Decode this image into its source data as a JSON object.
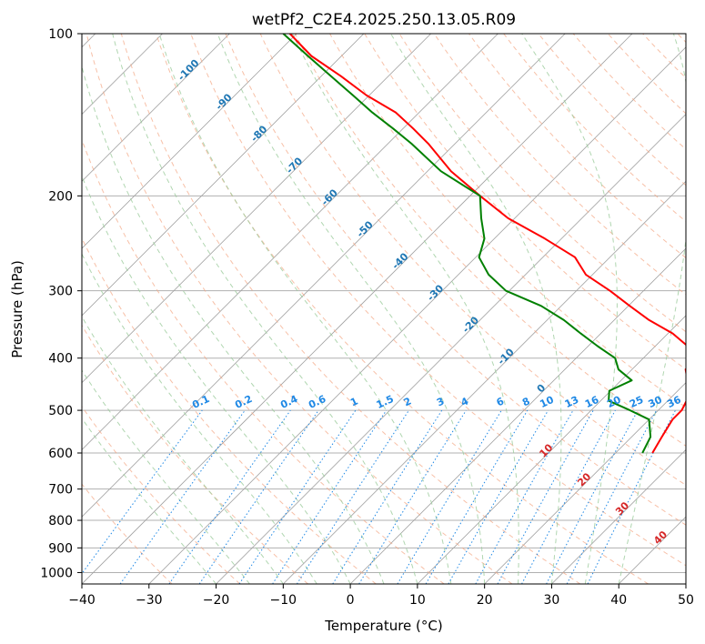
{
  "chart_data": {
    "type": "line",
    "subtype": "skew-t log-p diagram",
    "title": "wetPf2_C2E4.2025.250.13.05.R09",
    "xlabel": "Temperature (°C)",
    "ylabel": "Pressure (hPa)",
    "xlim": [
      -40,
      50
    ],
    "ylim": [
      1050,
      100
    ],
    "yscale": "log",
    "x_ticks": [
      "−40",
      "−30",
      "−20",
      "−10",
      "0",
      "10",
      "20",
      "30",
      "40",
      "50"
    ],
    "y_ticks": [
      "100",
      "200",
      "300",
      "400",
      "500",
      "600",
      "700",
      "800",
      "900",
      "1000"
    ],
    "y_tick_values": [
      100,
      200,
      300,
      400,
      500,
      600,
      700,
      800,
      900,
      1000
    ],
    "grid": true,
    "colors": {
      "temperature": "#ff0000",
      "dewpoint": "#008000",
      "isotherm": "#a0a0a0",
      "dry_adiabat": "#f4a582",
      "moist_adiabat": "#9ccc9c",
      "mixing_ratio": "#1e88e5",
      "isotherm_label": "#1f77b4",
      "dry_adiabat_label": "#d62728"
    },
    "series": [
      {
        "key": "temperature",
        "pressure": [
          600,
          560,
          520,
          500,
          480,
          460,
          440,
          420,
          400,
          380,
          360,
          340,
          320,
          300,
          280,
          260,
          240,
          220,
          200,
          180,
          160,
          150,
          140,
          130,
          120,
          110,
          100
        ],
        "values": [
          25.5,
          24.5,
          23.5,
          23.5,
          22.8,
          21.6,
          19.9,
          18.0,
          17.8,
          14.8,
          10.7,
          5.2,
          0.2,
          -5.0,
          -11.0,
          -15.2,
          -22.5,
          -31.0,
          -38.5,
          -46.5,
          -54.0,
          -58.5,
          -63.5,
          -70.5,
          -77.0,
          -84.5,
          -91.0
        ]
      },
      {
        "key": "dewpoint",
        "pressure": [
          600,
          560,
          520,
          500,
          480,
          460,
          440,
          420,
          400,
          380,
          360,
          340,
          320,
          300,
          280,
          260,
          240,
          220,
          200,
          180,
          160,
          150,
          140,
          130,
          120,
          110,
          100
        ],
        "values": [
          24.0,
          22.8,
          20.0,
          15.8,
          11.2,
          9.8,
          11.6,
          8.0,
          5.8,
          1.4,
          -3.0,
          -7.5,
          -13.0,
          -20.5,
          -25.5,
          -29.5,
          -31.5,
          -35.0,
          -38.5,
          -48.0,
          -56.5,
          -61.5,
          -67.0,
          -72.5,
          -78.5,
          -85.0,
          -92.0
        ]
      }
    ],
    "isotherm_labels": [
      "-100",
      "-90",
      "-80",
      "-70",
      "-60",
      "-50",
      "-40",
      "-30",
      "-20",
      "-10",
      "0"
    ],
    "isotherm_label_values": [
      -100,
      -90,
      -80,
      -70,
      -60,
      -50,
      -40,
      -30,
      -20,
      -10,
      0
    ],
    "dry_adiabat_labels": [
      "10",
      "20",
      "30",
      "40"
    ],
    "dry_adiabat_label_values": [
      10,
      20,
      30,
      40
    ],
    "mixing_ratio_labels": [
      "0.1",
      "0.2",
      "0.4",
      "0.6",
      "1",
      "1.5",
      "2",
      "3",
      "4",
      "6",
      "8",
      "10",
      "13",
      "16",
      "20",
      "25",
      "30",
      "36"
    ],
    "mixing_ratio_label_values": [
      0.1,
      0.2,
      0.4,
      0.6,
      1,
      1.5,
      2,
      3,
      4,
      6,
      8,
      10,
      13,
      16,
      20,
      25,
      30,
      36
    ]
  }
}
